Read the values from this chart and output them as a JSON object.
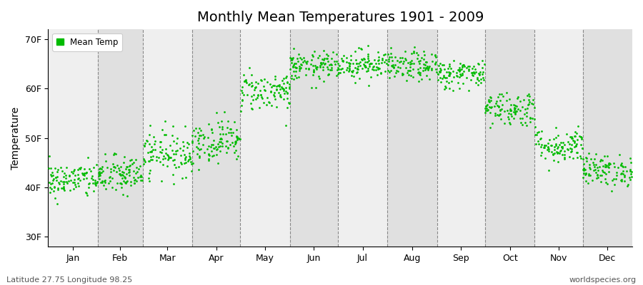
{
  "title": "Monthly Mean Temperatures 1901 - 2009",
  "ylabel": "Temperature",
  "xlabel_labels": [
    "Jan",
    "Feb",
    "Mar",
    "Apr",
    "May",
    "Jun",
    "Jul",
    "Aug",
    "Sep",
    "Oct",
    "Nov",
    "Dec"
  ],
  "bottom_left_text": "Latitude 27.75 Longitude 98.25",
  "bottom_right_text": "worldspecies.org",
  "legend_label": "Mean Temp",
  "marker_color": "#00bb00",
  "bg_light": "#efefef",
  "bg_dark": "#e0e0e0",
  "figure_background": "#ffffff",
  "ytick_labels": [
    "30F",
    "40F",
    "50F",
    "60F",
    "70F"
  ],
  "ytick_values": [
    30,
    40,
    50,
    60,
    70
  ],
  "ylim": [
    28,
    72
  ],
  "years": 109,
  "monthly_means": [
    41.5,
    42.5,
    47.0,
    49.5,
    59.5,
    64.5,
    65.0,
    64.5,
    63.0,
    56.0,
    48.5,
    43.5
  ],
  "monthly_stds": [
    1.8,
    2.0,
    2.3,
    2.2,
    2.0,
    1.5,
    1.5,
    1.5,
    1.5,
    1.8,
    1.8,
    1.6
  ],
  "title_fontsize": 14,
  "axis_label_fontsize": 10,
  "tick_fontsize": 9,
  "seed": 42,
  "days_in_month": [
    31,
    28,
    31,
    30,
    31,
    30,
    31,
    31,
    30,
    31,
    30,
    31
  ],
  "dashed_line_color": "#888888"
}
